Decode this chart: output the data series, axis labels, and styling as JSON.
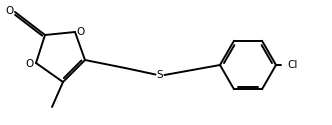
{
  "bg_color": "#ffffff",
  "line_color": "#000000",
  "text_color": "#000000",
  "line_width": 1.4,
  "font_size": 7.5,
  "fig_width": 3.32,
  "fig_height": 1.25,
  "dpi": 100,
  "xlim": [
    0,
    33.2
  ],
  "ylim": [
    0,
    12.5
  ]
}
